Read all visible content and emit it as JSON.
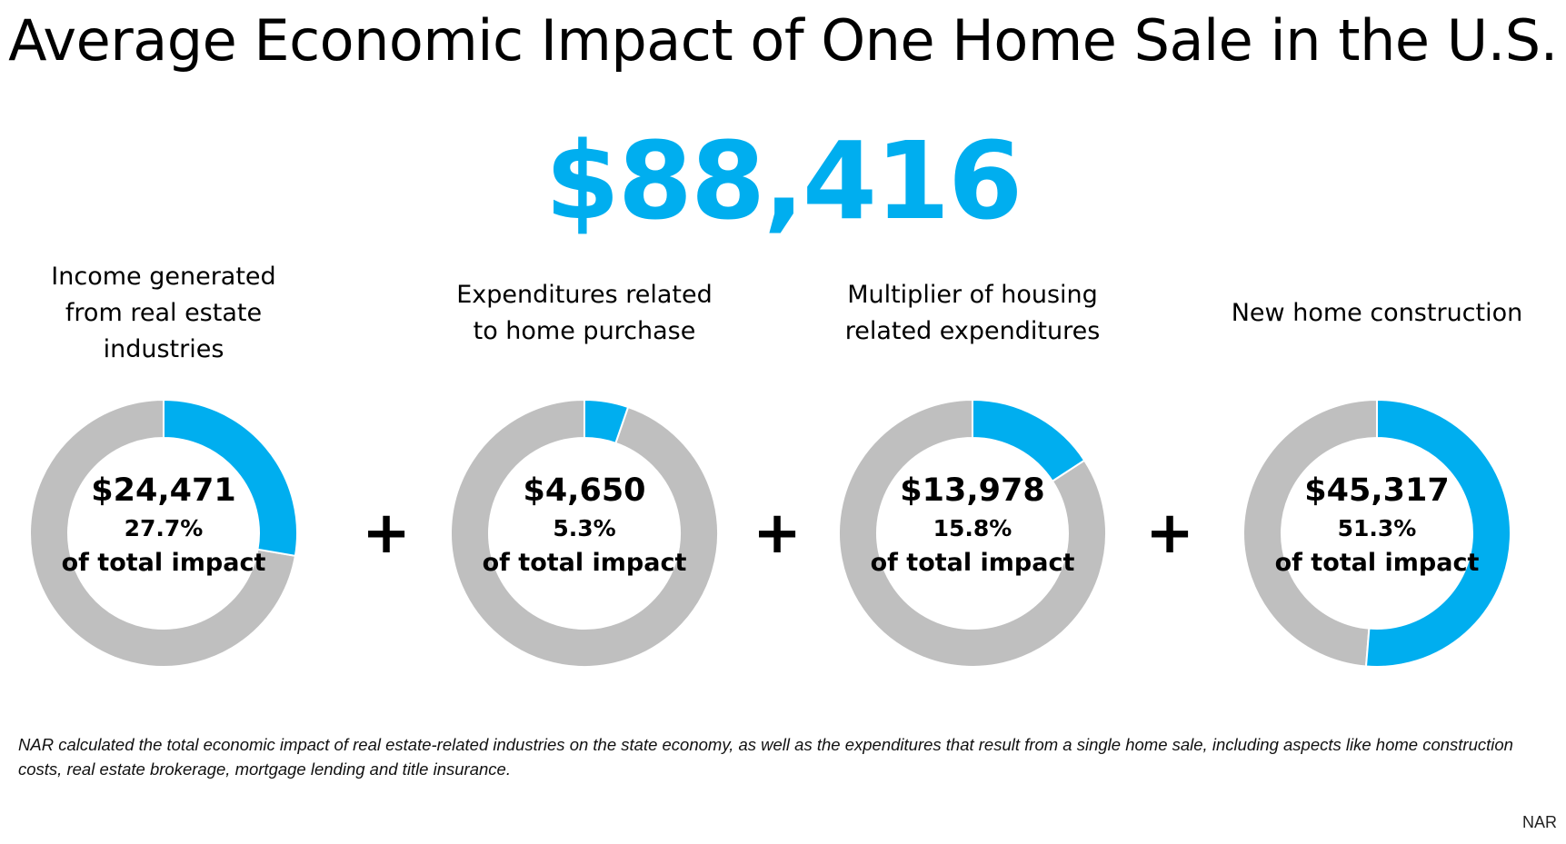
{
  "chart_data": {
    "type": "donut",
    "title": "Average Economic Impact of One Home Sale in the U.S.",
    "total": "$88,416",
    "colors": {
      "highlight": "#00AEEF",
      "remainder": "#BFBFBF"
    },
    "items": [
      {
        "label": "Income generated from real estate industries",
        "value_text": "$24,471",
        "value": 24471,
        "percent": 27.7,
        "percent_text": "27.7%",
        "sub": "of total impact"
      },
      {
        "label": "Expenditures related to home purchase",
        "value_text": "$4,650",
        "value": 4650,
        "percent": 5.3,
        "percent_text": "5.3%",
        "sub": "of total impact"
      },
      {
        "label": "Multiplier of housing related expenditures",
        "value_text": "$13,978",
        "value": 13978,
        "percent": 15.8,
        "percent_text": "15.8%",
        "sub": "of total impact"
      },
      {
        "label": "New home construction",
        "value_text": "$45,317",
        "value": 45317,
        "percent": 51.3,
        "percent_text": "51.3%",
        "sub": "of total impact"
      }
    ],
    "operator": "+"
  },
  "footnote": "NAR calculated the total economic impact of real estate-related industries on the state economy, as well as the expenditures that result from a single home sale, including aspects like home construction costs, real estate brokerage, mortgage lending and title insurance.",
  "source": "NAR"
}
